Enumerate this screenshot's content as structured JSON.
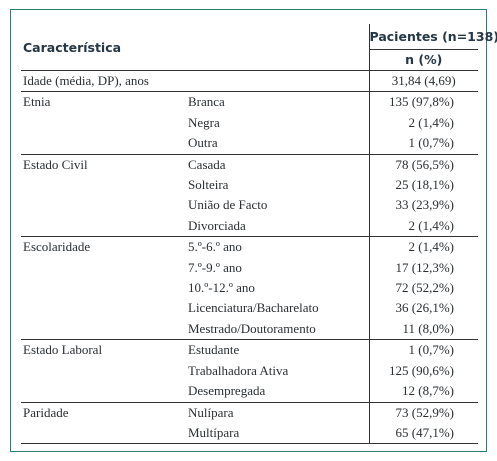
{
  "header": {
    "characteristic": "Característica",
    "group": "Pacientes (n=138)",
    "subheader": "n (%)"
  },
  "age_row": {
    "label": "Idade (média, DP), anos",
    "value": "31,84 (4,69)"
  },
  "groups": [
    {
      "label": "Etnia",
      "rows": [
        {
          "sub": "Branca",
          "value": "135 (97,8%)"
        },
        {
          "sub": "Negra",
          "value": "2 (1,4%)"
        },
        {
          "sub": "Outra",
          "value": "1 (0,7%)"
        }
      ]
    },
    {
      "label": "Estado Civil",
      "rows": [
        {
          "sub": "Casada",
          "value": "78 (56,5%)"
        },
        {
          "sub": "Solteira",
          "value": "25 (18,1%)"
        },
        {
          "sub": "União de Facto",
          "value": "33 (23,9%)"
        },
        {
          "sub": "Divorciada",
          "value": "2 (1,4%)"
        }
      ]
    },
    {
      "label": "Escolaridade",
      "rows": [
        {
          "sub": "5.º-6.º ano",
          "value": "2 (1,4%)"
        },
        {
          "sub": "7.º-9.º ano",
          "value": "17 (12,3%)"
        },
        {
          "sub": "10.º-12.º ano",
          "value": "72 (52,2%)"
        },
        {
          "sub": "Licenciatura/Bacharelato",
          "value": "36 (26,1%)"
        },
        {
          "sub": "Mestrado/Doutoramento",
          "value": "11 (8,0%)"
        }
      ]
    },
    {
      "label": "Estado Laboral",
      "rows": [
        {
          "sub": "Estudante",
          "value": "1 (0,7%)"
        },
        {
          "sub": "Trabalhadora Ativa",
          "value": "125 (90,6%)"
        },
        {
          "sub": "Desempregada",
          "value": "12 (8,7%)"
        }
      ]
    },
    {
      "label": "Paridade",
      "rows": [
        {
          "sub": "Nulípara",
          "value": "73 (52,9%)"
        },
        {
          "sub": "Multípara",
          "value": "65 (47,1%)"
        }
      ]
    }
  ]
}
